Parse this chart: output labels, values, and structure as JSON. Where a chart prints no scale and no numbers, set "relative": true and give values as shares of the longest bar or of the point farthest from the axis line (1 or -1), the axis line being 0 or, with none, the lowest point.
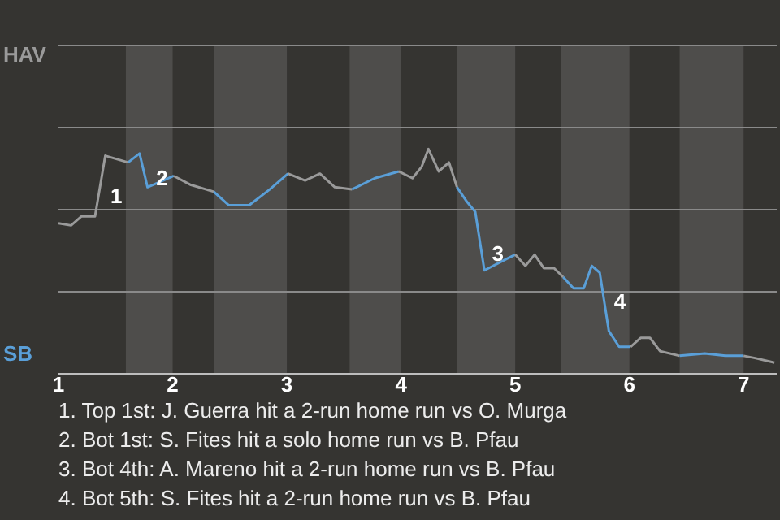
{
  "chart_data": {
    "type": "line",
    "relative": true,
    "marker": "none",
    "line_style": "solid",
    "ref_lines": [
      {
        "axis": "y",
        "value": 0.365,
        "color": "#8a8a8a"
      },
      {
        "axis": "y",
        "value": 0.73,
        "color": "#8a8a8a"
      },
      {
        "axis": "y",
        "value": 1.095,
        "color": "#8a8a8a"
      },
      {
        "axis": "y",
        "value": 1.46,
        "color": "#8a8a8a"
      }
    ],
    "xlim": [
      1,
      7.29
    ],
    "xticks": [
      1,
      2,
      3,
      4,
      5,
      6,
      7
    ],
    "series": [
      {
        "name": "HAV",
        "color": "#9a9a9a",
        "x": [
          1.0,
          1.11,
          1.2,
          1.32,
          1.41,
          1.61
        ],
        "values": [
          0.67,
          0.66,
          0.7,
          0.7,
          0.97,
          0.94
        ]
      },
      {
        "name": "SB",
        "color": "#5a9fd8",
        "x": [
          1.61,
          1.71,
          1.78,
          2.01
        ],
        "values": [
          0.94,
          0.98,
          0.83,
          0.88
        ]
      },
      {
        "color": "#9a9a9a",
        "x": [
          2.01,
          2.16,
          2.36
        ],
        "values": [
          0.88,
          0.84,
          0.81
        ]
      },
      {
        "color": "#5a9fd8",
        "x": [
          2.36,
          2.49,
          2.67,
          2.85,
          3.01
        ],
        "values": [
          0.81,
          0.75,
          0.75,
          0.82,
          0.89
        ]
      },
      {
        "color": "#9a9a9a",
        "x": [
          3.01,
          3.16,
          3.29,
          3.42,
          3.57
        ],
        "values": [
          0.89,
          0.86,
          0.89,
          0.83,
          0.82
        ]
      },
      {
        "color": "#5a9fd8",
        "x": [
          3.57,
          3.77,
          3.98
        ],
        "values": [
          0.82,
          0.87,
          0.9
        ]
      },
      {
        "color": "#9a9a9a",
        "x": [
          3.98,
          4.1,
          4.18,
          4.24,
          4.33,
          4.42,
          4.49
        ],
        "values": [
          0.9,
          0.87,
          0.92,
          1.0,
          0.9,
          0.94,
          0.83
        ]
      },
      {
        "color": "#5a9fd8",
        "x": [
          4.49,
          4.57,
          4.65,
          4.73,
          4.92,
          5.0
        ],
        "values": [
          0.83,
          0.77,
          0.72,
          0.46,
          0.51,
          0.53
        ]
      },
      {
        "color": "#9a9a9a",
        "x": [
          5.0,
          5.09,
          5.17,
          5.25,
          5.34,
          5.42
        ],
        "values": [
          0.53,
          0.48,
          0.53,
          0.47,
          0.47,
          0.43
        ]
      },
      {
        "color": "#5a9fd8",
        "x": [
          5.42,
          5.51,
          5.6,
          5.67,
          5.74,
          5.82,
          5.91,
          6.01
        ],
        "values": [
          0.43,
          0.38,
          0.38,
          0.48,
          0.45,
          0.19,
          0.12,
          0.12
        ]
      },
      {
        "color": "#9a9a9a",
        "x": [
          6.01,
          6.1,
          6.18,
          6.27,
          6.44
        ],
        "values": [
          0.12,
          0.16,
          0.16,
          0.1,
          0.08
        ]
      },
      {
        "color": "#5a9fd8",
        "x": [
          6.44,
          6.66,
          6.84,
          7.0
        ],
        "values": [
          0.08,
          0.09,
          0.08,
          0.08
        ]
      },
      {
        "color": "#9a9a9a",
        "x": [
          7.0,
          7.1,
          7.27
        ],
        "values": [
          0.08,
          0.07,
          0.05
        ]
      }
    ],
    "bands": [
      {
        "axis": "x",
        "from": 1.59,
        "to": 2,
        "color": "#4e4d4b"
      },
      {
        "axis": "x",
        "from": 2.36,
        "to": 3,
        "color": "#4e4d4b"
      },
      {
        "axis": "x",
        "from": 3.55,
        "to": 4,
        "color": "#4e4d4b"
      },
      {
        "axis": "x",
        "from": 4.49,
        "to": 5,
        "color": "#4e4d4b"
      },
      {
        "axis": "x",
        "from": 5.4,
        "to": 6,
        "color": "#4e4d4b"
      },
      {
        "axis": "x",
        "from": 6.44,
        "to": 7,
        "color": "#4e4d4b"
      }
    ],
    "annotations": [
      {
        "text": "1",
        "x": 1.37,
        "y": 0.79
      },
      {
        "text": "2",
        "x": 1.77,
        "y": 0.87
      },
      {
        "text": "3",
        "x": 4.71,
        "y": 0.535
      },
      {
        "text": "4",
        "x": 5.78,
        "y": 0.32
      },
      "1. Top 1st: J. Guerra hit a 2-run home run vs O. Murga",
      "2. Bot 1st: S. Fites hit a solo home run vs B. Pfau",
      "3. Bot 4th: A. Mareno hit a 2-run home run vs B. Pfau",
      "4. Bot 5th: S. Fites hit a 2-run home run vs B. Pfau"
    ]
  }
}
